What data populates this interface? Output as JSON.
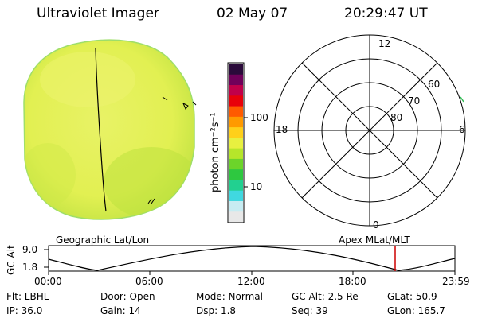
{
  "header": {
    "instrument": "Ultraviolet Imager",
    "date": "02 May 07",
    "time": "20:29:47 UT"
  },
  "colorbar": {
    "unit_label": "photon cm⁻²s⁻¹",
    "tick_100": "100",
    "tick_10": "10",
    "colors": [
      "#e8e8e8",
      "#c7ecf2",
      "#40d8e0",
      "#22d090",
      "#2ec840",
      "#6cd42a",
      "#b6e62a",
      "#e8f040",
      "#ffd01a",
      "#ff9a00",
      "#ff5a00",
      "#e8000a",
      "#c0004a",
      "#70005a",
      "#2a0a3a"
    ]
  },
  "polar": {
    "mlt_12": "12",
    "mlt_18": "18",
    "mlt_6": "6",
    "mlt_0": "0",
    "lat_60": "60",
    "lat_70": "70",
    "lat_80": "80"
  },
  "timeline": {
    "left_label": "Geographic Lat/Lon",
    "right_label": "Apex MLat/MLT",
    "axis_title": "GC Alt",
    "y_max": "9.0",
    "y_min": "1.8",
    "ticks": [
      "00:00",
      "06:00",
      "12:00",
      "18:00",
      "23:59"
    ],
    "marker_color": "#cc0000"
  },
  "info": {
    "flt": "Flt: LBHL",
    "door": "Door: Open",
    "mode": "Mode: Normal",
    "gcalt": "GC Alt: 2.5 Re",
    "glat": "GLat:  50.9",
    "ip": "IP: 36.0",
    "gain": "Gain: 14",
    "dsp": "Dsp:    1.8",
    "seq": "Seq: 39",
    "glon": "GLon: 165.7"
  },
  "image_colors": {
    "disk": "#e6f25a",
    "disk_edge": "#c8e64a",
    "disk_green": "#b4e23c"
  }
}
